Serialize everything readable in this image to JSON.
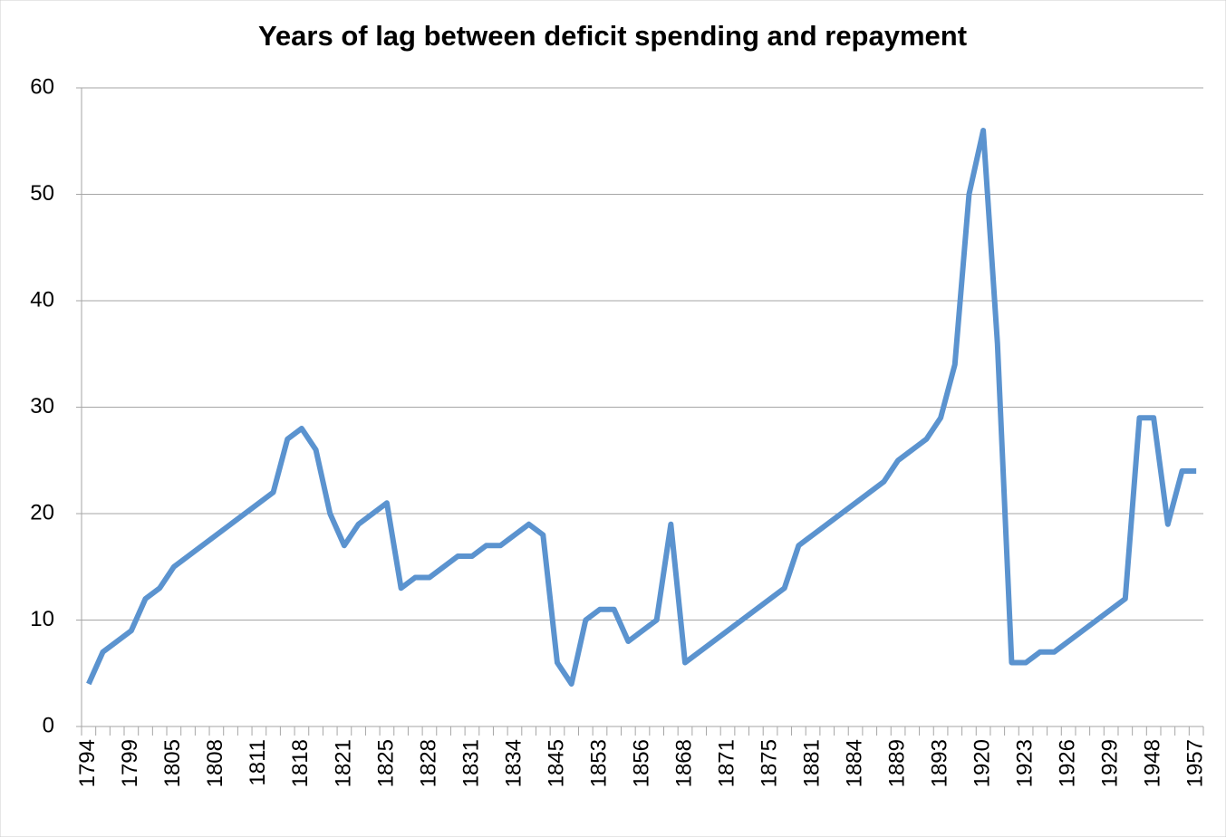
{
  "chart_data": {
    "type": "line",
    "title": "Years of lag between deficit spending and repayment",
    "categories": [
      "1794",
      null,
      null,
      "1799",
      null,
      null,
      "1805",
      null,
      null,
      "1808",
      null,
      null,
      "1811",
      null,
      null,
      "1818",
      null,
      null,
      "1821",
      null,
      null,
      "1825",
      null,
      null,
      "1828",
      null,
      null,
      "1831",
      null,
      null,
      "1834",
      null,
      null,
      "1845",
      null,
      null,
      "1853",
      null,
      null,
      "1856",
      null,
      null,
      "1868",
      null,
      null,
      "1871",
      null,
      null,
      "1875",
      null,
      null,
      "1881",
      null,
      null,
      "1884",
      null,
      null,
      "1889",
      null,
      null,
      "1893",
      null,
      null,
      "1920",
      null,
      null,
      "1923",
      null,
      null,
      "1926",
      null,
      null,
      "1929",
      null,
      null,
      "1948",
      null,
      null,
      "1957"
    ],
    "series": [
      {
        "name": "Years of lag",
        "color": "#5b93cf",
        "values": [
          4,
          7,
          8,
          9,
          12,
          13,
          15,
          16,
          17,
          18,
          19,
          20,
          21,
          22,
          27,
          28,
          26,
          20,
          17,
          19,
          20,
          21,
          13,
          14,
          14,
          15,
          16,
          16,
          17,
          17,
          18,
          19,
          18,
          6,
          4,
          10,
          11,
          11,
          8,
          9,
          10,
          19,
          6,
          7,
          8,
          9,
          10,
          11,
          12,
          13,
          17,
          18,
          19,
          20,
          21,
          22,
          23,
          25,
          26,
          27,
          29,
          34,
          50,
          56,
          36,
          6,
          6,
          7,
          7,
          8,
          9,
          10,
          11,
          12,
          29,
          29,
          19,
          24,
          24
        ]
      }
    ],
    "ylim": [
      0,
      60
    ],
    "yticks": [
      0,
      10,
      20,
      30,
      40,
      50,
      60
    ],
    "grid": true
  }
}
